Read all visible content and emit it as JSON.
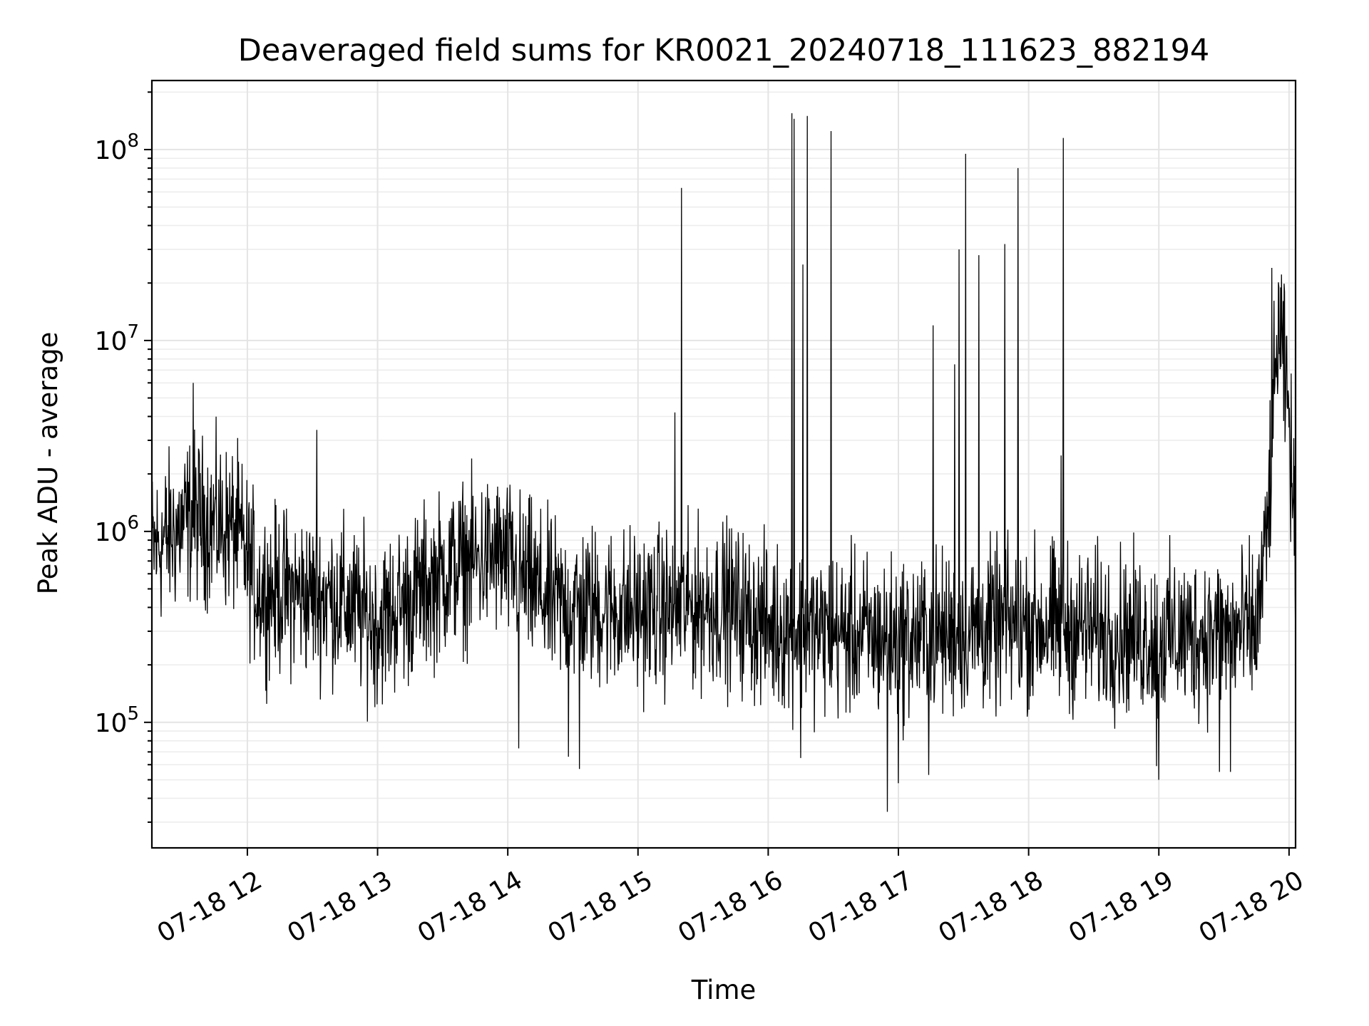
{
  "chart_data": {
    "type": "line",
    "title": "Deaveraged field sums for KR0021_20240718_111623_882194",
    "xlabel": "Time",
    "ylabel": "Peak ADU - average",
    "yscale": "log",
    "ylim": [
      22000,
      230000000
    ],
    "xlim": [
      "07-18 11:16",
      "07-18 20:03"
    ],
    "grid": true,
    "x_tick_labels": [
      "07-18 12",
      "07-18 13",
      "07-18 14",
      "07-18 15",
      "07-18 16",
      "07-18 17",
      "07-18 18",
      "07-18 19",
      "07-18 20"
    ],
    "y_tick_labels": [
      {
        "base": "10",
        "exp": "5",
        "value": 100000
      },
      {
        "base": "10",
        "exp": "6",
        "value": 1000000
      },
      {
        "base": "10",
        "exp": "7",
        "value": 10000000
      },
      {
        "base": "10",
        "exp": "8",
        "value": 100000000
      }
    ],
    "series_color": "#000000",
    "baseline_profile": [
      {
        "x": "07-18 11:16",
        "y": 800000
      },
      {
        "x": "07-18 11:35",
        "y": 1200000
      },
      {
        "x": "07-18 11:55",
        "y": 1000000
      },
      {
        "x": "07-18 12:05",
        "y": 500000
      },
      {
        "x": "07-18 12:40",
        "y": 450000
      },
      {
        "x": "07-18 13:00",
        "y": 330000
      },
      {
        "x": "07-18 13:35",
        "y": 650000
      },
      {
        "x": "07-18 13:55",
        "y": 750000
      },
      {
        "x": "07-18 14:20",
        "y": 420000
      },
      {
        "x": "07-18 15:00",
        "y": 380000
      },
      {
        "x": "07-18 15:40",
        "y": 420000
      },
      {
        "x": "07-18 16:00",
        "y": 320000
      },
      {
        "x": "07-18 17:00",
        "y": 270000
      },
      {
        "x": "07-18 18:00",
        "y": 330000
      },
      {
        "x": "07-18 19:00",
        "y": 280000
      },
      {
        "x": "07-18 19:45",
        "y": 300000
      },
      {
        "x": "07-18 19:50",
        "y": 1000000
      },
      {
        "x": "07-18 19:55",
        "y": 12000000
      },
      {
        "x": "07-18 20:00",
        "y": 4000000
      },
      {
        "x": "07-18 20:03",
        "y": 700000
      }
    ],
    "spikes": [
      {
        "x": "07-18 11:35",
        "y": 6000000
      },
      {
        "x": "07-18 12:32",
        "y": 3400000
      },
      {
        "x": "07-18 15:17",
        "y": 4200000
      },
      {
        "x": "07-18 15:20",
        "y": 63000000
      },
      {
        "x": "07-18 16:11",
        "y": 155000000
      },
      {
        "x": "07-18 16:12",
        "y": 145000000
      },
      {
        "x": "07-18 16:16",
        "y": 25000000
      },
      {
        "x": "07-18 16:18",
        "y": 150000000
      },
      {
        "x": "07-18 16:29",
        "y": 125000000
      },
      {
        "x": "07-18 17:16",
        "y": 12000000
      },
      {
        "x": "07-18 17:26",
        "y": 7500000
      },
      {
        "x": "07-18 17:28",
        "y": 30000000
      },
      {
        "x": "07-18 17:31",
        "y": 95000000
      },
      {
        "x": "07-18 17:37",
        "y": 28000000
      },
      {
        "x": "07-18 17:49",
        "y": 32000000
      },
      {
        "x": "07-18 17:55",
        "y": 80000000
      },
      {
        "x": "07-18 18:15",
        "y": 2500000
      },
      {
        "x": "07-18 18:16",
        "y": 115000000
      },
      {
        "x": "07-18 19:52",
        "y": 24000000
      },
      {
        "x": "07-18 19:58",
        "y": 18000000
      }
    ],
    "dips": [
      {
        "x": "07-18 14:05",
        "y": 73000
      },
      {
        "x": "07-18 14:28",
        "y": 66000
      },
      {
        "x": "07-18 14:33",
        "y": 57000
      },
      {
        "x": "07-18 16:15",
        "y": 65000
      },
      {
        "x": "07-18 16:55",
        "y": 34000
      },
      {
        "x": "07-18 17:00",
        "y": 48000
      },
      {
        "x": "07-18 17:14",
        "y": 53000
      },
      {
        "x": "07-18 18:59",
        "y": 59000
      },
      {
        "x": "07-18 19:00",
        "y": 50000
      },
      {
        "x": "07-18 19:28",
        "y": 55000
      },
      {
        "x": "07-18 19:33",
        "y": 55000
      }
    ]
  }
}
